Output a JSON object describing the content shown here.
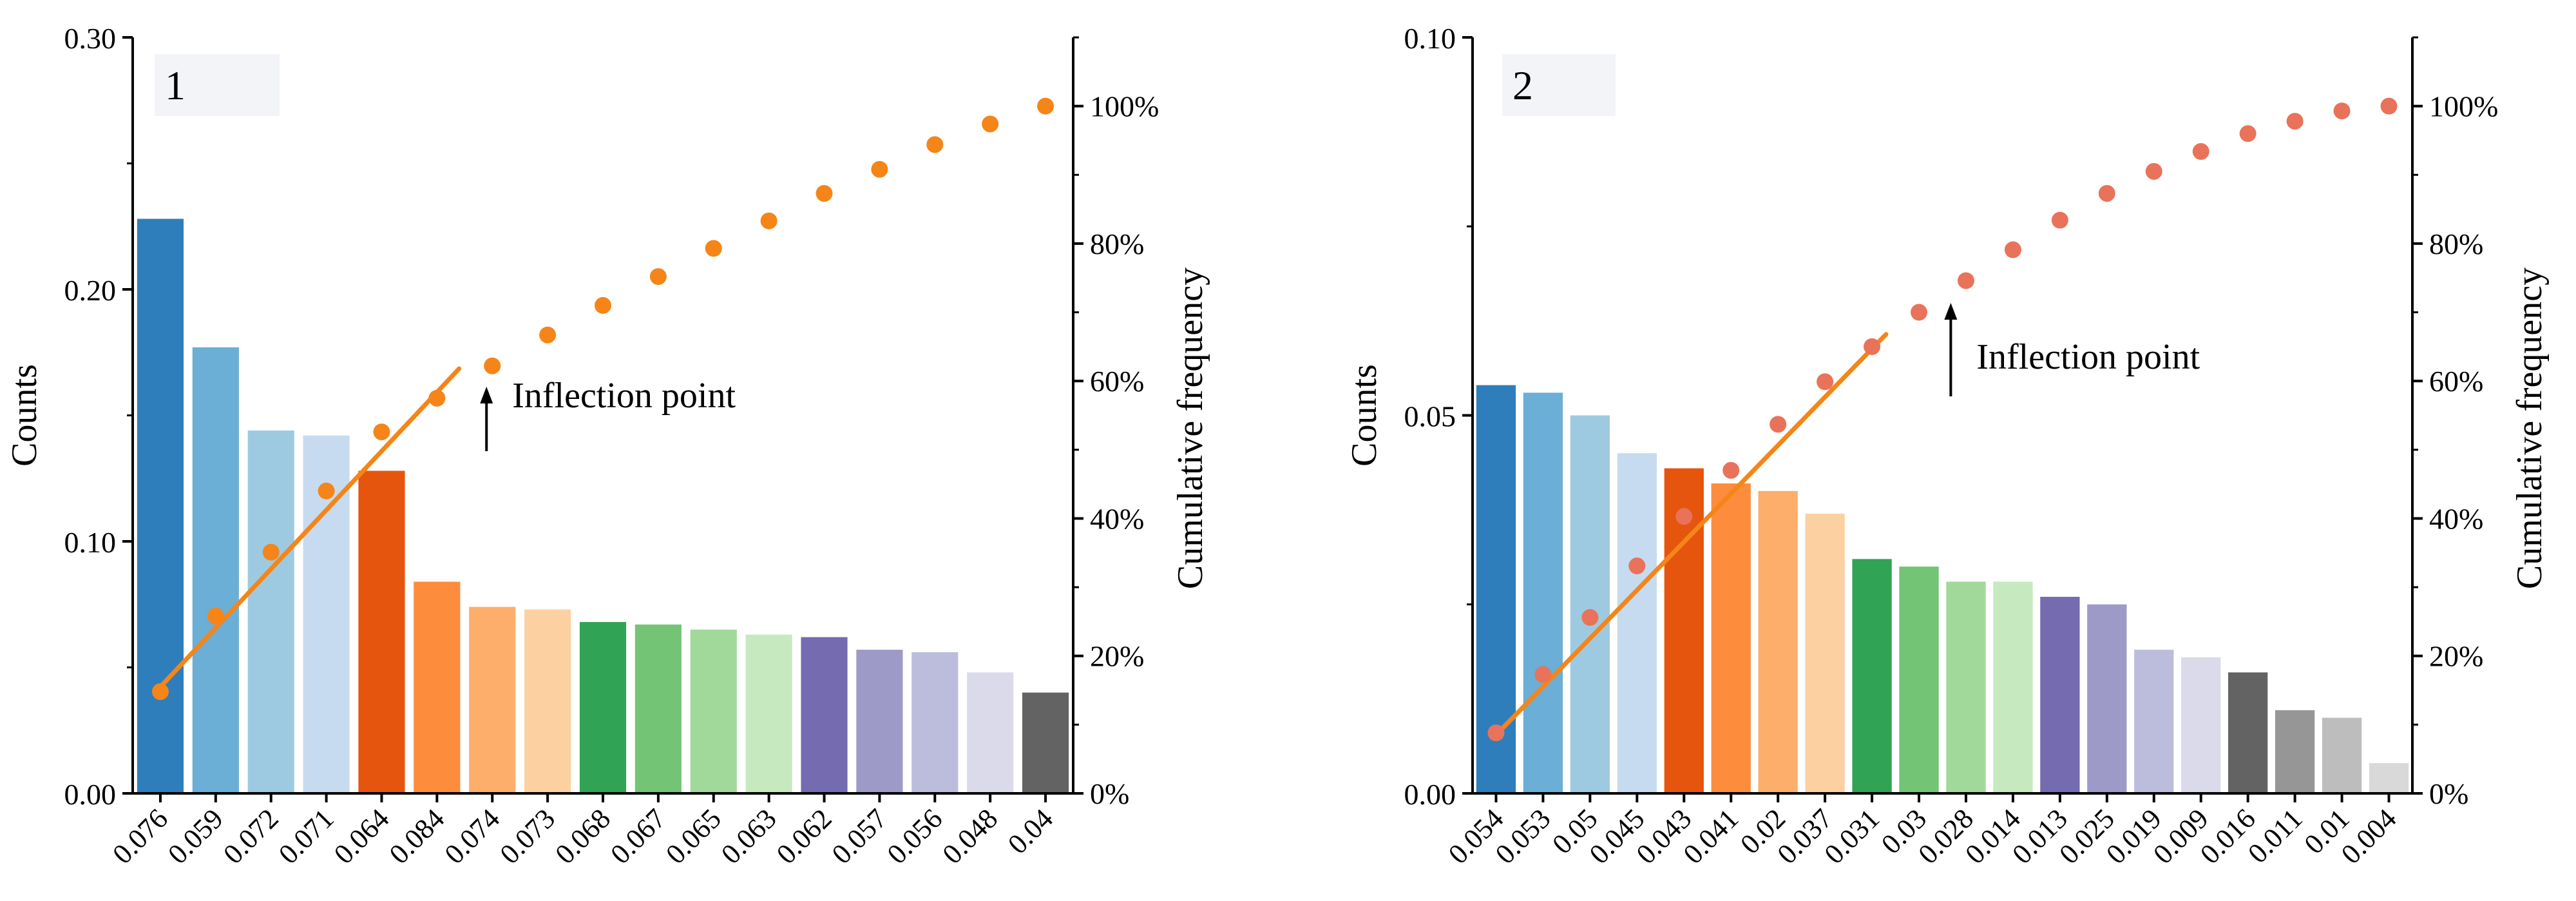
{
  "chart_data": [
    {
      "type": "bar",
      "panel_label": "1",
      "categories": [
        "0.076",
        "0.059",
        "0.072",
        "0.071",
        "0.064",
        "0.084",
        "0.074",
        "0.073",
        "0.068",
        "0.067",
        "0.065",
        "0.063",
        "0.062",
        "0.057",
        "0.056",
        "0.048",
        "0.04"
      ],
      "values": [
        0.228,
        0.177,
        0.144,
        0.142,
        0.128,
        0.084,
        0.074,
        0.073,
        0.068,
        0.067,
        0.065,
        0.063,
        0.062,
        0.057,
        0.056,
        0.048,
        0.04
      ],
      "bar_colors": [
        "#2f7ebc",
        "#6baed6",
        "#9ecae1",
        "#c6dbef",
        "#e6550d",
        "#fd8d3c",
        "#fdae6b",
        "#fdd0a2",
        "#31a354",
        "#74c476",
        "#a1d99b",
        "#c7e9c0",
        "#756bb1",
        "#9e9ac8",
        "#bcbddc",
        "#dadaeb",
        "#636363"
      ],
      "cumulative": [
        14.8,
        25.8,
        35.1,
        44.0,
        52.6,
        57.5,
        62.2,
        66.7,
        71.0,
        75.2,
        79.3,
        83.3,
        87.3,
        90.8,
        94.4,
        97.4,
        100.0
      ],
      "ylabel": "Counts",
      "y2label": "Cumulative frequency",
      "ylim": [
        0,
        0.3
      ],
      "y2lim": [
        0,
        110
      ],
      "y_ticks": [
        "0.00",
        "0.10",
        "0.20",
        "0.30"
      ],
      "y2_ticks": [
        "0%",
        "20%",
        "40%",
        "60%",
        "80%",
        "100%"
      ],
      "fit_line": {
        "from_index": 0,
        "to_index": 5.4,
        "y_start": 15.5,
        "y_end": 61.8
      },
      "annotation": {
        "text": "Inflection point",
        "at_index": 6
      },
      "series_color": "#f58518",
      "point_color": "#f58518"
    },
    {
      "type": "bar",
      "panel_label": "2",
      "categories": [
        "0.054",
        "0.053",
        "0.05",
        "0.045",
        "0.043",
        "0.041",
        "0.02",
        "0.037",
        "0.031",
        "0.03",
        "0.028",
        "0.014",
        "0.013",
        "0.025",
        "0.019",
        "0.009",
        "0.016",
        "0.011",
        "0.01",
        "0.004"
      ],
      "values": [
        0.054,
        0.053,
        0.05,
        0.045,
        0.043,
        0.041,
        0.04,
        0.037,
        0.031,
        0.03,
        0.028,
        0.028,
        0.026,
        0.025,
        0.019,
        0.018,
        0.016,
        0.011,
        0.01,
        0.004
      ],
      "bar_colors": [
        "#2f7ebc",
        "#6baed6",
        "#9ecae1",
        "#c6dbef",
        "#e6550d",
        "#fd8d3c",
        "#fdae6b",
        "#fdd0a2",
        "#31a354",
        "#74c476",
        "#a1d99b",
        "#c7e9c0",
        "#756bb1",
        "#9e9ac8",
        "#bcbddc",
        "#dadaeb",
        "#636363",
        "#969696",
        "#bdbdbd",
        "#d9d9d9"
      ],
      "cumulative": [
        8.8,
        17.3,
        25.6,
        33.1,
        40.3,
        47.0,
        53.7,
        59.9,
        65.0,
        70.0,
        74.6,
        79.1,
        83.4,
        87.3,
        90.5,
        93.4,
        96.0,
        97.8,
        99.3,
        100.0
      ],
      "ylabel": "Counts",
      "y2label": "Cumulative frequency",
      "ylim": [
        0,
        0.1
      ],
      "y2lim": [
        0,
        110
      ],
      "y_ticks": [
        "0.00",
        "0.05",
        "0.10"
      ],
      "y2_ticks": [
        "0%",
        "20%",
        "40%",
        "60%",
        "80%",
        "100%"
      ],
      "fit_line": {
        "from_index": 0,
        "to_index": 8.3,
        "y_start": 8.5,
        "y_end": 66.8
      },
      "annotation": {
        "text": "Inflection point",
        "at_index": 9.8
      },
      "series_color": "#f58518",
      "point_color": "#e8735a"
    }
  ]
}
